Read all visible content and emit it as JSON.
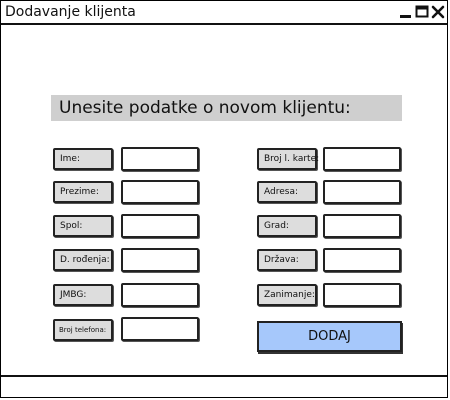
{
  "window": {
    "title": "Dodavanje klijenta",
    "controls": [
      "minimize-icon",
      "maximize-icon",
      "close-icon"
    ]
  },
  "form": {
    "heading": "Unesite podatke o novom klijentu:",
    "left_fields": [
      {
        "label": "Ime:",
        "value": ""
      },
      {
        "label": "Prezime:",
        "value": ""
      },
      {
        "label": "Spol:",
        "value": ""
      },
      {
        "label": "D. rođenja:",
        "value": ""
      },
      {
        "label": "JMBG:",
        "value": ""
      },
      {
        "label": "Broj telefona:",
        "value": ""
      }
    ],
    "right_fields": [
      {
        "label": "Broj l. karte:",
        "value": ""
      },
      {
        "label": "Adresa:",
        "value": ""
      },
      {
        "label": "Grad:",
        "value": ""
      },
      {
        "label": "Država:",
        "value": ""
      },
      {
        "label": "Zanimanje:",
        "value": ""
      }
    ],
    "submit_label": "DODAJ",
    "submit_color": "#a6c8fb",
    "label_bg_color": "#dddddd",
    "heading_bg_color": "#cfcfcf"
  }
}
